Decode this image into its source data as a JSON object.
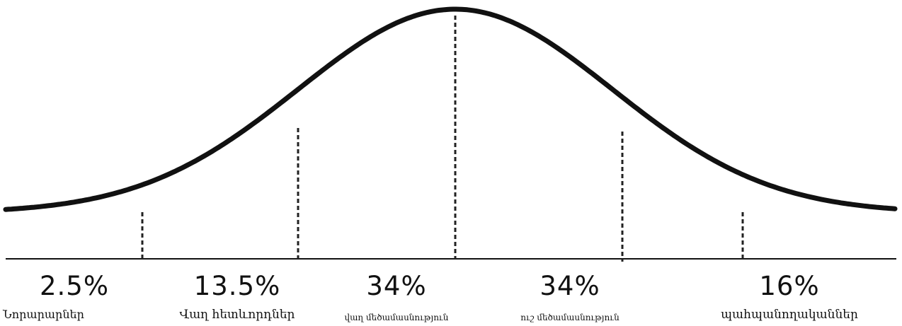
{
  "diagram": {
    "type": "adoption-bell-curve",
    "colors": {
      "curve": "#111111",
      "baseline": "#111111",
      "dividers": "#222222",
      "text": "#111111"
    },
    "segments": [
      {
        "percent": "2.5%",
        "label": "Նորարարներ"
      },
      {
        "percent": "13.5%",
        "label": "Վաղ հետևորդներ"
      },
      {
        "percent": "34%",
        "label": "վաղ մեծամասնություն"
      },
      {
        "percent": "34%",
        "label": "ուշ մեծամասնություն"
      },
      {
        "percent": "16%",
        "label": "պահպանողականներ"
      }
    ]
  }
}
